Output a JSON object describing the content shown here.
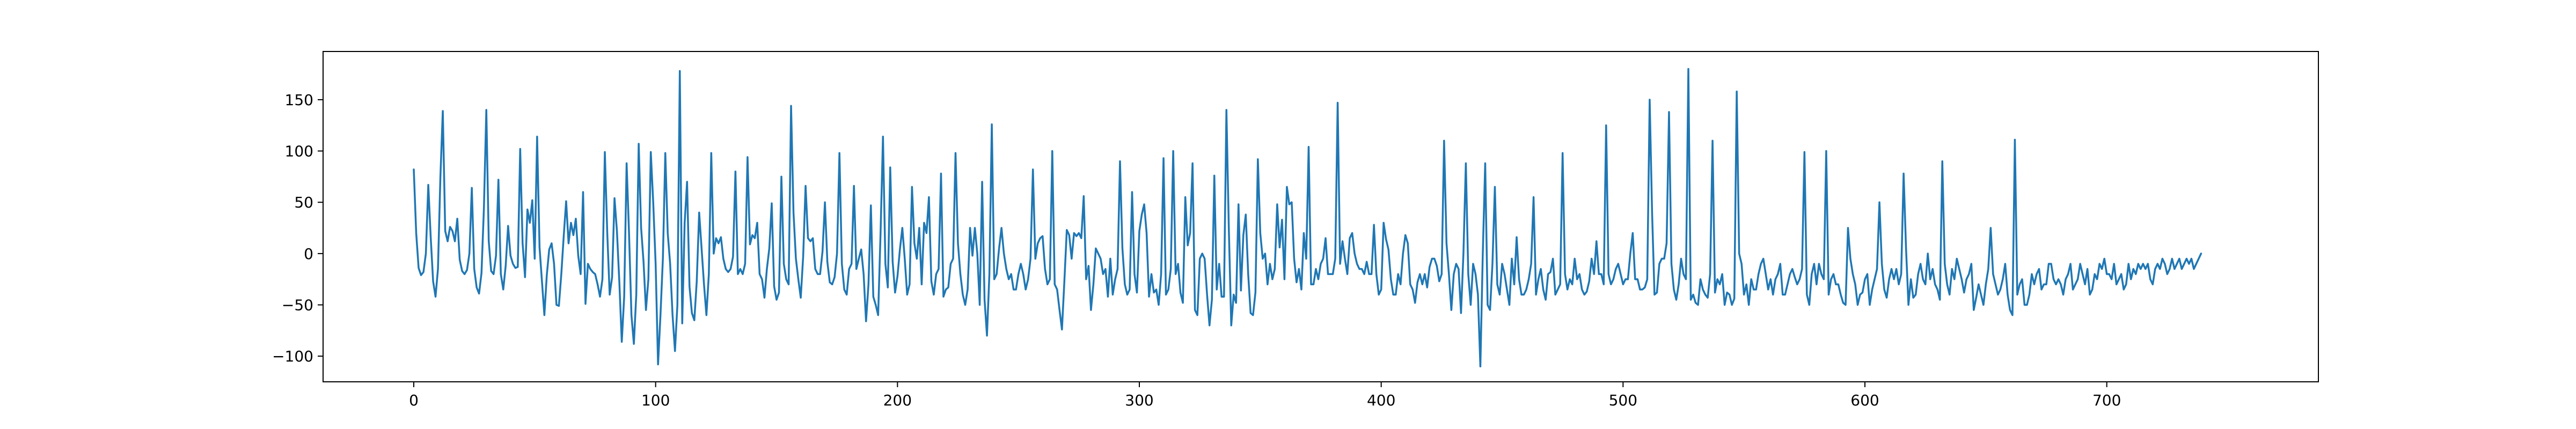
{
  "chart_data": {
    "type": "line",
    "title": "",
    "xlabel": "",
    "ylabel": "",
    "xlim": [
      -37.5,
      787.5
    ],
    "ylim": [
      -125,
      197
    ],
    "x_ticks": [
      0,
      100,
      200,
      300,
      400,
      500,
      600,
      700
    ],
    "y_ticks": [
      -100,
      -50,
      0,
      50,
      100,
      150
    ],
    "x_tick_labels": [
      "0",
      "100",
      "200",
      "300",
      "400",
      "500",
      "600",
      "700"
    ],
    "y_tick_labels": [
      "−100",
      "−50",
      "0",
      "50",
      "100",
      "150"
    ],
    "grid": false,
    "legend": "none",
    "colors": {
      "series": "#1f77b4",
      "axes": "#000000",
      "background": "#ffffff"
    },
    "series": [
      {
        "x_start": 0,
        "x_step": 1,
        "values": [
          82,
          20,
          -14,
          -21,
          -18,
          0,
          67,
          16,
          -27,
          -42,
          -15,
          74,
          139,
          22,
          12,
          26,
          22,
          12,
          34,
          -6,
          -17,
          -20,
          -16,
          0,
          64,
          -15,
          -33,
          -39,
          -19,
          44,
          140,
          12,
          -17,
          -20,
          -2,
          72,
          -20,
          -35,
          -12,
          27,
          -2,
          -10,
          -14,
          -13,
          102,
          10,
          -23,
          43,
          30,
          52,
          -5,
          114,
          6,
          -27,
          -60,
          -21,
          4,
          10,
          -10,
          -50,
          -51,
          -20,
          17,
          51,
          10,
          30,
          18,
          34,
          -2,
          -20,
          60,
          -49,
          -10,
          -15,
          -18,
          -20,
          -30,
          -42,
          -25,
          99,
          20,
          -40,
          -23,
          54,
          22,
          -28,
          -86,
          -42,
          88,
          20,
          -60,
          -88,
          -40,
          107,
          25,
          -8,
          -55,
          -25,
          99,
          50,
          -10,
          -108,
          -60,
          -5,
          98,
          20,
          -10,
          -60,
          -95,
          -50,
          178,
          -68,
          30,
          70,
          -32,
          -58,
          -65,
          -27,
          40,
          5,
          -30,
          -60,
          -20,
          98,
          0,
          15,
          10,
          16,
          -5,
          -15,
          -18,
          -15,
          -3,
          80,
          -20,
          -15,
          -20,
          -10,
          94,
          9,
          18,
          15,
          30,
          -20,
          -25,
          -43,
          -15,
          5,
          49,
          -32,
          -45,
          -38,
          75,
          -10,
          -25,
          -30,
          144,
          40,
          -5,
          -25,
          -43,
          -3,
          66,
          15,
          12,
          15,
          -15,
          -20,
          -20,
          2,
          50,
          -8,
          -28,
          -30,
          -23,
          0,
          98,
          -10,
          -35,
          -40,
          -15,
          -10,
          66,
          -15,
          -5,
          4,
          -20,
          -66,
          -30,
          47,
          -42,
          -50,
          -60,
          20,
          114,
          -10,
          -33,
          84,
          -8,
          -38,
          -22,
          4,
          25,
          -5,
          -40,
          -30,
          65,
          10,
          -5,
          25,
          -30,
          30,
          20,
          55,
          -27,
          -40,
          -20,
          -15,
          78,
          -42,
          -35,
          -33,
          -10,
          -5,
          98,
          10,
          -20,
          -40,
          -50,
          -35,
          25,
          -2,
          25,
          0,
          -50,
          70,
          -45,
          -80,
          -20,
          126,
          -25,
          -20,
          5,
          25,
          0,
          -15,
          -25,
          -20,
          -35,
          -35,
          -20,
          -10,
          -20,
          -35,
          -25,
          -5,
          82,
          -5,
          10,
          15,
          17,
          -15,
          -30,
          -25,
          100,
          -30,
          -35,
          -55,
          -74,
          -27,
          23,
          18,
          -5,
          20,
          17,
          20,
          15,
          56,
          -25,
          -12,
          -55,
          -30,
          5,
          0,
          -5,
          -20,
          -15,
          -42,
          -5,
          -40,
          -25,
          -15,
          90,
          5,
          -30,
          -40,
          -35,
          60,
          -20,
          -38,
          22,
          38,
          48,
          20,
          -42,
          -20,
          -38,
          -35,
          -50,
          -20,
          93,
          -40,
          -35,
          -15,
          100,
          -20,
          -10,
          -38,
          -48,
          55,
          8,
          20,
          88,
          -55,
          -60,
          -5,
          0,
          -5,
          -40,
          -70,
          -45,
          76,
          -35,
          -10,
          -42,
          -42,
          140,
          24,
          -70,
          -40,
          -48,
          48,
          -36,
          18,
          38,
          -20,
          -58,
          -60,
          -38,
          92,
          20,
          -5,
          0,
          -30,
          -10,
          -25,
          -15,
          48,
          6,
          33,
          -25,
          65,
          48,
          50,
          -5,
          -28,
          -15,
          -35,
          20,
          -5,
          104,
          -30,
          -30,
          -15,
          -25,
          -10,
          -5,
          15,
          -20,
          -20,
          -20,
          -5,
          147,
          -10,
          12,
          -5,
          -20,
          15,
          20,
          0,
          -10,
          -15,
          -15,
          -20,
          -8,
          -20,
          -20,
          28,
          -20,
          -40,
          -35,
          30,
          14,
          4,
          -25,
          -40,
          -40,
          -20,
          -30,
          0,
          18,
          10,
          -30,
          -35,
          -48,
          -28,
          -20,
          -30,
          -20,
          -33,
          -13,
          -5,
          -5,
          -12,
          -27,
          -20,
          110,
          10,
          -20,
          -55,
          -20,
          -10,
          -15,
          -58,
          0,
          88,
          -20,
          -50,
          -10,
          -20,
          -40,
          -110,
          0,
          88,
          -50,
          -55,
          -10,
          65,
          -30,
          -40,
          -10,
          -20,
          -35,
          -50,
          -5,
          -30,
          16,
          -25,
          -40,
          -40,
          -35,
          -25,
          -10,
          55,
          -40,
          -25,
          -15,
          -35,
          -45,
          -20,
          -18,
          -5,
          -40,
          -35,
          -30,
          98,
          -20,
          -35,
          -25,
          -30,
          -5,
          -25,
          -20,
          -35,
          -40,
          -37,
          -27,
          -5,
          -20,
          12,
          -20,
          -20,
          -30,
          125,
          -20,
          -30,
          -25,
          -15,
          -10,
          -20,
          -30,
          -25,
          -25,
          0,
          20,
          -25,
          -25,
          -35,
          -35,
          -33,
          -25,
          150,
          40,
          -40,
          -38,
          -10,
          -5,
          -5,
          10,
          138,
          -10,
          -35,
          -45,
          -30,
          -5,
          -20,
          -25,
          180,
          -45,
          -40,
          -48,
          -50,
          -25,
          -35,
          -40,
          -43,
          -20,
          110,
          -38,
          -25,
          -30,
          -20,
          -50,
          -38,
          -40,
          -50,
          -44,
          158,
          0,
          -10,
          -40,
          -30,
          -50,
          -25,
          -35,
          -35,
          -20,
          -10,
          -5,
          -20,
          -35,
          -25,
          -40,
          -25,
          -20,
          -10,
          -40,
          -40,
          -30,
          -20,
          -15,
          -23,
          -30,
          -25,
          -15,
          99,
          -40,
          -50,
          -20,
          -10,
          -30,
          -10,
          -20,
          -25,
          100,
          -40,
          -25,
          -20,
          -30,
          -30,
          -40,
          -48,
          -50,
          25,
          -5,
          -20,
          -30,
          -50,
          -40,
          -38,
          -25,
          -20,
          -50,
          -35,
          -25,
          -15,
          50,
          -10,
          -35,
          -43,
          -25,
          -15,
          -25,
          -15,
          -30,
          -20,
          78,
          5,
          -50,
          -25,
          -43,
          -40,
          -20,
          -10,
          -25,
          -30,
          0,
          -25,
          -15,
          -30,
          -35,
          -45,
          90,
          -10,
          -30,
          -40,
          -15,
          -25,
          -5,
          -15,
          -25,
          -38,
          -25,
          -20,
          -10,
          -55,
          -43,
          -30,
          -40,
          -50,
          -30,
          -15,
          25,
          -20,
          -30,
          -40,
          -35,
          -25,
          -10,
          -40,
          -55,
          -60,
          111,
          -40,
          -30,
          -25,
          -50,
          -50,
          -40,
          -20,
          -30,
          -20,
          -15,
          -35,
          -30,
          -30,
          -10,
          -10,
          -25,
          -30,
          -25,
          -30,
          -40,
          -25,
          -20,
          -10,
          -35,
          -30,
          -25,
          -10,
          -20,
          -30,
          -15,
          -40,
          -35,
          -20,
          -25,
          -10,
          -15,
          -5,
          -20,
          -20,
          -25,
          -10,
          -30,
          -25,
          -20,
          -35,
          -30,
          -10,
          -25,
          -15,
          -20,
          -10,
          -15,
          -10,
          -15,
          -10,
          -25,
          -30,
          -15,
          -10,
          -15,
          -5,
          -10,
          -20,
          -15,
          -5,
          -15,
          -10,
          -5,
          -15,
          -10,
          -5,
          -10,
          -5,
          -15,
          -10,
          -5,
          0
        ]
      }
    ]
  }
}
